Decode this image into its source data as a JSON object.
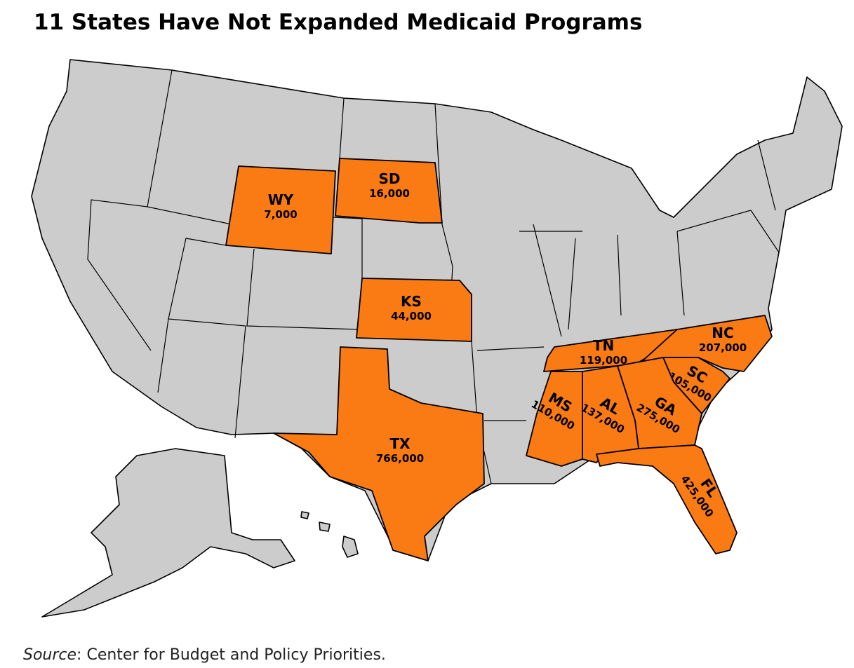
{
  "header": {
    "title": "11 States Have Not Expanded Medicaid Programs"
  },
  "states": [
    {
      "abbr": "WY",
      "count": "7,000"
    },
    {
      "abbr": "SD",
      "count": "16,000"
    },
    {
      "abbr": "KS",
      "count": "44,000"
    },
    {
      "abbr": "TX",
      "count": "766,000"
    },
    {
      "abbr": "TN",
      "count": "119,000"
    },
    {
      "abbr": "NC",
      "count": "207,000"
    },
    {
      "abbr": "SC",
      "count": "105,000"
    },
    {
      "abbr": "GA",
      "count": "275,000"
    },
    {
      "abbr": "AL",
      "count": "137,000"
    },
    {
      "abbr": "MS",
      "count": "110,000"
    },
    {
      "abbr": "FL",
      "count": "425,000"
    }
  ],
  "footer": {
    "source_label": "Source",
    "source_text": ": Center for Budget and Policy Priorities."
  }
}
